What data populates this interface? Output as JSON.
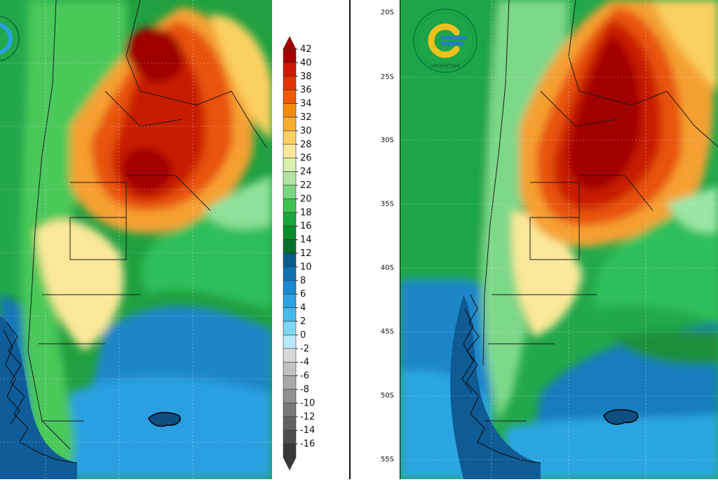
{
  "colorbar": {
    "labels": [
      "42",
      "40",
      "38",
      "36",
      "34",
      "32",
      "30",
      "28",
      "26",
      "24",
      "22",
      "20",
      "18",
      "16",
      "14",
      "12",
      "10",
      "8",
      "6",
      "4",
      "2",
      "0",
      "-2",
      "-4",
      "-6",
      "-8",
      "-10",
      "-12",
      "-14",
      "-16"
    ],
    "colors": [
      "#a40000",
      "#cc1a00",
      "#e23400",
      "#f05a00",
      "#f58a10",
      "#f8ae30",
      "#fbd060",
      "#fde79a",
      "#d9f2b0",
      "#b2e6a0",
      "#7bd77f",
      "#3fc052",
      "#1aa63c",
      "#0b8a2a",
      "#077026",
      "#0a5a8a",
      "#1070b0",
      "#1a8ad0",
      "#2aa3e0",
      "#45bbec",
      "#7fd6f5",
      "#b7e8fb",
      "#d8d8d8",
      "#c2c2c2",
      "#a8a8a8",
      "#909090",
      "#787878",
      "#626262",
      "#4c4c4c",
      "#383838"
    ]
  },
  "latitude_axis": {
    "labels": [
      "20S",
      "25S",
      "30S",
      "35S",
      "40S",
      "45S",
      "50S",
      "55S"
    ]
  },
  "maps": {
    "left": {
      "logo_name": "smn-logo-partial"
    },
    "right": {
      "logo_name": "smn-argentina-logo",
      "logo_text": "ARGENTINA"
    }
  },
  "colors": {
    "ocean_cold": "#1f8fd8",
    "ocean_cool": "#3aaee6",
    "land_hot": "#c61a00",
    "land_very_hot": "#a30000",
    "land_warm": "#f07a1a",
    "land_mild": "#fbe58a",
    "land_green": "#2fb04a",
    "border": "#1a1a1a"
  }
}
